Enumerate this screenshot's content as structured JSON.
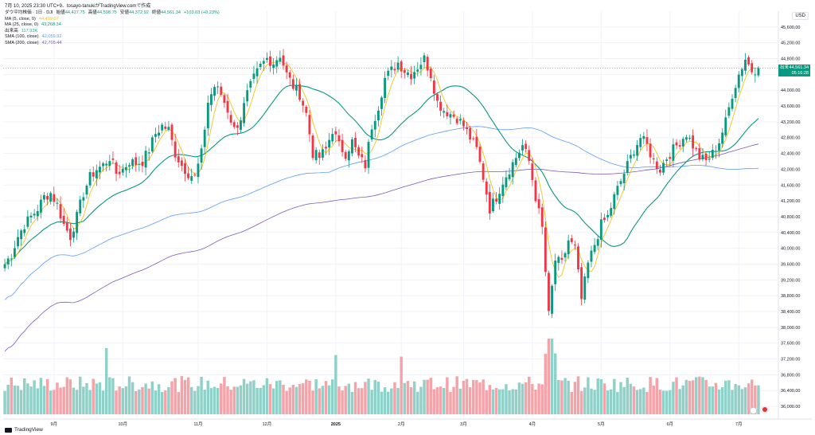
{
  "header": {
    "timestamp": "7月 10, 2025 23:30 UTC+9、tosayo-tanukiがTradingView.comで作成"
  },
  "legend": {
    "main": {
      "name": "ダウ平均株価 · 1日 · DJI",
      "open_label": "始値",
      "open": "44,427.75",
      "high_label": "高値",
      "high": "44,598.75",
      "low_label": "安値",
      "low": "44,372.92",
      "close_label": "終値",
      "close": "44,561.34",
      "change": "+103.03 (+0.23%)"
    },
    "indicators": [
      {
        "name": "MA (5, close, 0)",
        "value": "44,499.07",
        "color": "#f2c31b"
      },
      {
        "name": "MA (25, close, 0)",
        "value": "43,268.34",
        "color": "#089981"
      },
      {
        "name": "出来高",
        "value": "117.93K",
        "color": "#22ab94"
      },
      {
        "name": "SMA (100, close)",
        "value": "42,059.92",
        "color": "#5b9cf6"
      },
      {
        "name": "SMA (200, close)",
        "value": "42,705.44",
        "color": "#7e57c2"
      }
    ]
  },
  "currency": "USD",
  "price_label": {
    "tag": "出来",
    "value": "44,561.34",
    "countdown": "05:16:28"
  },
  "branding": "TradingView",
  "colors": {
    "up": "#089981",
    "down": "#f23645",
    "vol_up": "#8fd1c8",
    "vol_down": "#f5a3a8",
    "ma5": "#f2c31b",
    "ma25": "#089981",
    "sma100": "#5b9cf6",
    "sma200": "#7e57c2",
    "grid": "#f0f3fa"
  },
  "chart_data": {
    "type": "candlestick",
    "title": "ダウ平均株価 · 1日 · DJI",
    "ylim": [
      35800,
      46000
    ],
    "y_ticks": [
      "36,000.00",
      "36,400.00",
      "36,800.00",
      "37,200.00",
      "37,600.00",
      "38,000.00",
      "38,400.00",
      "38,800.00",
      "39,200.00",
      "39,600.00",
      "40,000.00",
      "40,400.00",
      "40,800.00",
      "41,200.00",
      "41,600.00",
      "42,000.00",
      "42,400.00",
      "42,800.00",
      "43,200.00",
      "43,600.00",
      "44,000.00",
      "44,400.00",
      "44,800.00",
      "45,200.00",
      "45,600.00"
    ],
    "x_ticks": [
      {
        "label": "9月",
        "index": 15
      },
      {
        "label": "10月",
        "index": 36
      },
      {
        "label": "11月",
        "index": 59
      },
      {
        "label": "12月",
        "index": 80
      },
      {
        "label": "2025",
        "index": 101
      },
      {
        "label": "2月",
        "index": 121
      },
      {
        "label": "3月",
        "index": 140
      },
      {
        "label": "4月",
        "index": 161
      },
      {
        "label": "5月",
        "index": 182
      },
      {
        "label": "6月",
        "index": 203
      },
      {
        "label": "7月",
        "index": 224
      }
    ],
    "anchors": [
      [
        0,
        39600
      ],
      [
        2,
        39850
      ],
      [
        4,
        40300
      ],
      [
        6,
        40600
      ],
      [
        8,
        40800
      ],
      [
        10,
        41000
      ],
      [
        12,
        41300
      ],
      [
        14,
        41400
      ],
      [
        16,
        41100
      ],
      [
        18,
        40600
      ],
      [
        20,
        40300
      ],
      [
        22,
        40800
      ],
      [
        24,
        41400
      ],
      [
        26,
        41800
      ],
      [
        28,
        42000
      ],
      [
        30,
        42100
      ],
      [
        32,
        42300
      ],
      [
        34,
        41900
      ],
      [
        36,
        42000
      ],
      [
        38,
        42200
      ],
      [
        40,
        42150
      ],
      [
        42,
        42200
      ],
      [
        44,
        42500
      ],
      [
        46,
        42900
      ],
      [
        48,
        43100
      ],
      [
        50,
        43000
      ],
      [
        52,
        42400
      ],
      [
        54,
        42100
      ],
      [
        56,
        41900
      ],
      [
        58,
        41800
      ],
      [
        60,
        42400
      ],
      [
        62,
        43700
      ],
      [
        64,
        44100
      ],
      [
        66,
        43900
      ],
      [
        68,
        43500
      ],
      [
        70,
        43000
      ],
      [
        72,
        43300
      ],
      [
        74,
        43900
      ],
      [
        76,
        44300
      ],
      [
        78,
        44600
      ],
      [
        80,
        44800
      ],
      [
        82,
        44700
      ],
      [
        84,
        44900
      ],
      [
        86,
        44400
      ],
      [
        88,
        44100
      ],
      [
        90,
        43900
      ],
      [
        92,
        43400
      ],
      [
        94,
        42400
      ],
      [
        96,
        42300
      ],
      [
        98,
        42500
      ],
      [
        100,
        43000
      ],
      [
        102,
        42600
      ],
      [
        104,
        42400
      ],
      [
        106,
        42700
      ],
      [
        108,
        42300
      ],
      [
        110,
        42100
      ],
      [
        112,
        43100
      ],
      [
        114,
        43600
      ],
      [
        116,
        44300
      ],
      [
        118,
        44500
      ],
      [
        120,
        44700
      ],
      [
        122,
        44500
      ],
      [
        124,
        44400
      ],
      [
        126,
        44600
      ],
      [
        128,
        44800
      ],
      [
        130,
        44400
      ],
      [
        132,
        43700
      ],
      [
        134,
        43500
      ],
      [
        136,
        43400
      ],
      [
        138,
        43300
      ],
      [
        140,
        43100
      ],
      [
        142,
        42800
      ],
      [
        144,
        42500
      ],
      [
        146,
        41800
      ],
      [
        148,
        41000
      ],
      [
        150,
        41300
      ],
      [
        152,
        41700
      ],
      [
        154,
        42000
      ],
      [
        156,
        42300
      ],
      [
        158,
        42600
      ],
      [
        160,
        42200
      ],
      [
        162,
        41300
      ],
      [
        164,
        40500
      ],
      [
        166,
        38300
      ],
      [
        168,
        39700
      ],
      [
        170,
        39600
      ],
      [
        172,
        40200
      ],
      [
        174,
        40000
      ],
      [
        176,
        38700
      ],
      [
        178,
        39600
      ],
      [
        180,
        40100
      ],
      [
        182,
        40600
      ],
      [
        184,
        40800
      ],
      [
        186,
        41300
      ],
      [
        188,
        41700
      ],
      [
        190,
        42100
      ],
      [
        192,
        42500
      ],
      [
        194,
        42800
      ],
      [
        196,
        42600
      ],
      [
        198,
        42200
      ],
      [
        200,
        42000
      ],
      [
        202,
        42300
      ],
      [
        204,
        42500
      ],
      [
        206,
        42700
      ],
      [
        208,
        42900
      ],
      [
        210,
        42600
      ],
      [
        212,
        42300
      ],
      [
        214,
        42200
      ],
      [
        216,
        42400
      ],
      [
        218,
        42700
      ],
      [
        220,
        43200
      ],
      [
        222,
        43900
      ],
      [
        224,
        44400
      ],
      [
        226,
        44800
      ],
      [
        228,
        44500
      ],
      [
        230,
        44561
      ]
    ],
    "last_close": 44561.34,
    "ma5_last": 44499.07,
    "ma25_last": 43268.34,
    "sma100_last": 42059.92,
    "sma200_last": 42705.44,
    "grid": true
  }
}
